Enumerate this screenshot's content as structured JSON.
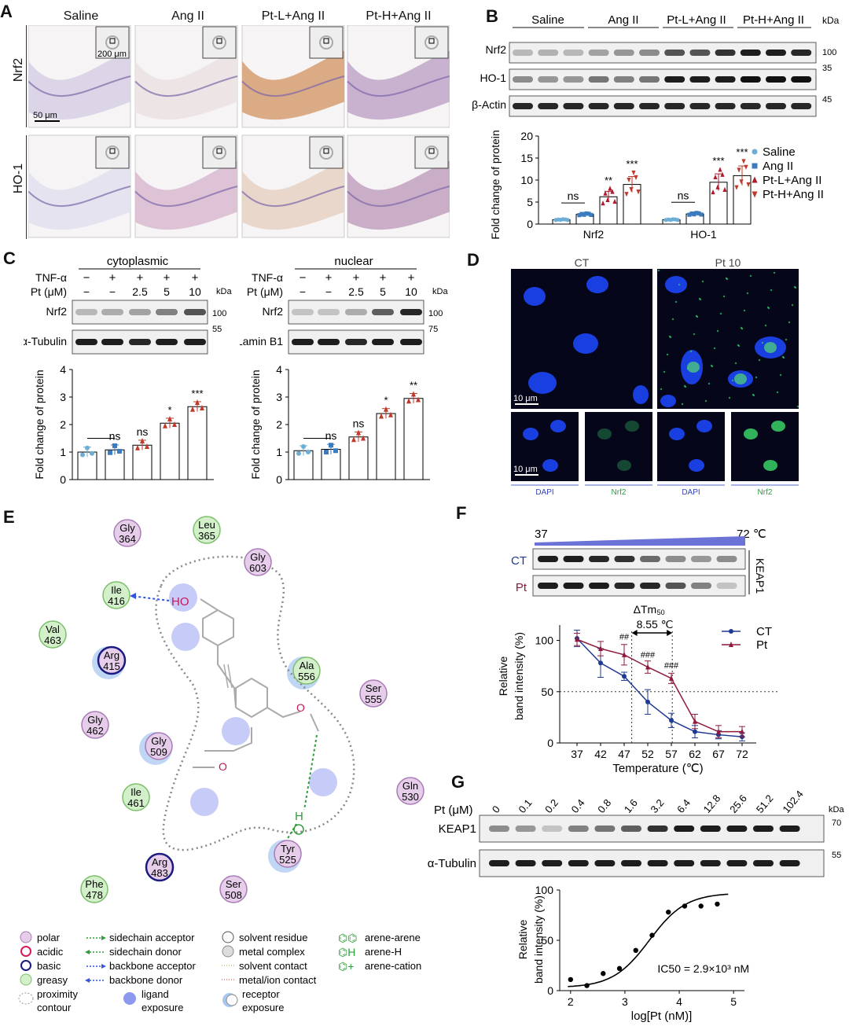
{
  "panel_letters": [
    "A",
    "B",
    "C",
    "D",
    "E",
    "F",
    "G"
  ],
  "panelA": {
    "groups": [
      "Saline",
      "Ang II",
      "Pt-L+Ang II",
      "Pt-H+Ang II"
    ],
    "rows": [
      "Nrf2",
      "HO-1"
    ],
    "scale_big": "200 μm",
    "scale_small": "50 μm",
    "tissue_colors": [
      [
        "#d9d3e6",
        "#ece4e4",
        "#d9a77e",
        "#c6aecd"
      ],
      [
        "#e4e2ee",
        "#dcbfd4",
        "#e7d5c7",
        "#c7aac4"
      ]
    ]
  },
  "panelB": {
    "groups": [
      "Saline",
      "Ang II",
      "Pt-L+Ang II",
      "Pt-H+Ang II"
    ],
    "kda_header": "kDa",
    "rows": [
      {
        "label": "Nrf2",
        "kda": "100"
      },
      {
        "label": "HO-1",
        "kda": "35"
      },
      {
        "label": "β-Actin",
        "kda": "45"
      }
    ],
    "chart_data": {
      "type": "bar",
      "ylabel": "Fold change of protein",
      "ylim": [
        0,
        20
      ],
      "yticks": [
        "0",
        "5",
        "10",
        "15",
        "20"
      ],
      "categories": [
        "Nrf2",
        "HO-1"
      ],
      "series": [
        {
          "name": "Saline",
          "values": [
            1.0,
            1.0
          ],
          "color": "#6baed6",
          "marker": "circle"
        },
        {
          "name": "Ang II",
          "values": [
            2.2,
            2.3
          ],
          "color": "#3b7bbf",
          "marker": "square"
        },
        {
          "name": "Pt-L+Ang II",
          "values": [
            6.2,
            9.5
          ],
          "color": "#b2182b",
          "marker": "triangle-up"
        },
        {
          "name": "Pt-H+Ang II",
          "values": [
            9.0,
            11.0
          ],
          "color": "#c0392b",
          "marker": "triangle-down"
        }
      ],
      "annotations": [
        {
          "text": "ns",
          "group": 0,
          "between": [
            0,
            1
          ]
        },
        {
          "text": "**",
          "group": 0,
          "series": 2
        },
        {
          "text": "***",
          "group": 0,
          "series": 3
        },
        {
          "text": "ns",
          "group": 1,
          "between": [
            0,
            1
          ]
        },
        {
          "text": "***",
          "group": 1,
          "series": 2
        },
        {
          "text": "***",
          "group": 1,
          "series": 3
        }
      ]
    }
  },
  "panelC": {
    "left": {
      "title": "cytoplasmic",
      "row1_label": "TNF-α",
      "row1": [
        "−",
        "+",
        "+",
        "+",
        "+"
      ],
      "row2_label": "Pt (μM)",
      "row2": [
        "−",
        "−",
        "2.5",
        "5",
        "10"
      ],
      "kda": "kDa",
      "bands": [
        {
          "label": "Nrf2",
          "kda": "100"
        },
        {
          "label": "α-Tubulin",
          "kda": "55"
        }
      ],
      "chart_data": {
        "type": "bar",
        "ylabel": "Fold change of protein",
        "ylim": [
          0,
          4
        ],
        "yticks": [
          "0",
          "1",
          "2",
          "3",
          "4"
        ],
        "values": [
          1.0,
          1.08,
          1.25,
          2.05,
          2.65
        ],
        "colors": [
          "#6baed6",
          "#3b7bbf",
          "#c0392b",
          "#c0392b",
          "#c0392b"
        ],
        "annotations": [
          {
            "text": "ns",
            "bar": 1
          },
          {
            "text": "ns",
            "bar": 2
          },
          {
            "text": "*",
            "bar": 3
          },
          {
            "text": "***",
            "bar": 4
          }
        ]
      }
    },
    "right": {
      "title": "nuclear",
      "row1_label": "TNF-α",
      "row1": [
        "−",
        "+",
        "+",
        "+",
        "+"
      ],
      "row2_label": "Pt (μM)",
      "row2": [
        "−",
        "−",
        "2.5",
        "5",
        "10"
      ],
      "kda": "kDa",
      "bands": [
        {
          "label": "Nrf2",
          "kda": "100"
        },
        {
          "label": "Lamin B1",
          "kda": "75"
        }
      ],
      "chart_data": {
        "type": "bar",
        "ylabel": "Fold change of protein",
        "ylim": [
          0,
          4
        ],
        "yticks": [
          "0",
          "1",
          "2",
          "3",
          "4"
        ],
        "values": [
          1.05,
          1.1,
          1.55,
          2.4,
          2.95
        ],
        "colors": [
          "#6baed6",
          "#3b7bbf",
          "#c0392b",
          "#c0392b",
          "#c0392b"
        ],
        "annotations": [
          {
            "text": "ns",
            "bar": 1
          },
          {
            "text": "ns",
            "bar": 2
          },
          {
            "text": "*",
            "bar": 3
          },
          {
            "text": "**",
            "bar": 4
          }
        ]
      }
    }
  },
  "panelD": {
    "cols": [
      "CT",
      "Pt 10"
    ],
    "scale": "10 μm",
    "bottom_labels": [
      "DAPI",
      "Nrf2",
      "DAPI",
      "Nrf2"
    ]
  },
  "panelE": {
    "residues": [
      {
        "name": "Gly",
        "num": "364",
        "type": "polar"
      },
      {
        "name": "Leu",
        "num": "365",
        "type": "greasy"
      },
      {
        "name": "Gly",
        "num": "603",
        "type": "polar"
      },
      {
        "name": "Ile",
        "num": "416",
        "type": "greasy"
      },
      {
        "name": "Val",
        "num": "463",
        "type": "greasy"
      },
      {
        "name": "Arg",
        "num": "415",
        "type": "basic"
      },
      {
        "name": "Ala",
        "num": "556",
        "type": "greasy"
      },
      {
        "name": "Ser",
        "num": "555",
        "type": "polar"
      },
      {
        "name": "Gly",
        "num": "462",
        "type": "polar"
      },
      {
        "name": "Gly",
        "num": "509",
        "type": "polar"
      },
      {
        "name": "Ile",
        "num": "461",
        "type": "greasy"
      },
      {
        "name": "Gln",
        "num": "530",
        "type": "polar"
      },
      {
        "name": "Tyr",
        "num": "525",
        "type": "polar"
      },
      {
        "name": "Arg",
        "num": "483",
        "type": "basic"
      },
      {
        "name": "Phe",
        "num": "478",
        "type": "greasy"
      },
      {
        "name": "Ser",
        "num": "508",
        "type": "polar"
      }
    ],
    "ligand_labels": {
      "ho": "HO",
      "h": "H"
    },
    "legend": [
      {
        "label": "polar",
        "sym": "polar"
      },
      {
        "label": "acidic",
        "sym": "acidic"
      },
      {
        "label": "basic",
        "sym": "basic"
      },
      {
        "label": "greasy",
        "sym": "greasy"
      },
      {
        "label": "proximity contour",
        "sym": "contour"
      },
      {
        "label": "sidechain acceptor",
        "sym": "arrow-green-r"
      },
      {
        "label": "sidechain donor",
        "sym": "arrow-green-l"
      },
      {
        "label": "backbone acceptor",
        "sym": "arrow-blue-r"
      },
      {
        "label": "backbone donor",
        "sym": "arrow-blue-l"
      },
      {
        "label": "ligand exposure",
        "sym": "ligexp"
      },
      {
        "label": "solvent residue",
        "sym": "solvent"
      },
      {
        "label": "metal complex",
        "sym": "metal"
      },
      {
        "label": "solvent contact",
        "sym": "line-olive"
      },
      {
        "label": "metal/ion contact",
        "sym": "line-red"
      },
      {
        "label": "receptor exposure",
        "sym": "recexp"
      },
      {
        "label": "arene-arene",
        "sym": "aa"
      },
      {
        "label": "arene-H",
        "sym": "ah"
      },
      {
        "label": "arene-cation",
        "sym": "ac"
      }
    ]
  },
  "panelF": {
    "temp_start": "37",
    "temp_end": "72 ℃",
    "rows": [
      "CT",
      "Pt"
    ],
    "side_label": "KEAP1",
    "dtm_label": "ΔTm",
    "dtm_sub": "50",
    "dtm_value": "8.55 ℃",
    "chart_data": {
      "type": "line",
      "xlabel": "Temperature (℃)",
      "ylabel": "Relative band intensity (%)",
      "x": [
        37,
        42,
        47,
        52,
        57,
        62,
        67,
        72
      ],
      "ylim": [
        0,
        115
      ],
      "yticks": [
        "0",
        "50",
        "100"
      ],
      "series": [
        {
          "name": "CT",
          "values": [
            102,
            78,
            65,
            40,
            22,
            11,
            8,
            6
          ],
          "errors": [
            8,
            14,
            4,
            12,
            7,
            6,
            4,
            4
          ],
          "color": "#1f3a93",
          "marker": "circle"
        },
        {
          "name": "Pt",
          "values": [
            101,
            92,
            86,
            74,
            63,
            21,
            11,
            11
          ],
          "errors": [
            6,
            7,
            10,
            6,
            5,
            7,
            6,
            5
          ],
          "color": "#8e1b3b",
          "marker": "triangle-up"
        }
      ],
      "annotations": [
        "##",
        "###",
        "###"
      ],
      "refline_y": 50,
      "tm_lines": [
        48.6,
        57.2
      ]
    }
  },
  "panelG": {
    "pt_label": "Pt (μM)",
    "concs": [
      "0",
      "0.1",
      "0.2",
      "0.4",
      "0.8",
      "1.6",
      "3.2",
      "6.4",
      "12.8",
      "25.6",
      "51.2",
      "102.4"
    ],
    "kda": "kDa",
    "bands": [
      {
        "label": "KEAP1",
        "kda": "70"
      },
      {
        "label": "α-Tubulin",
        "kda": "55"
      }
    ],
    "band_intensity": [
      0.45,
      0.4,
      0.2,
      0.5,
      0.55,
      0.65,
      0.85,
      0.95,
      0.95,
      0.95,
      0.95,
      0.95
    ],
    "chart_data": {
      "type": "scatter",
      "xlabel": "log[Pt (nM)]",
      "ylabel": "Relative band intensity (%)",
      "xlim": [
        1.8,
        5.2
      ],
      "ylim": [
        0,
        100
      ],
      "xticks": [
        "2",
        "3",
        "4",
        "5"
      ],
      "yticks": [
        "0",
        "50",
        "100"
      ],
      "x": [
        2.0,
        2.3,
        2.6,
        2.9,
        3.2,
        3.5,
        3.8,
        4.1,
        4.4,
        4.7
      ],
      "y": [
        11,
        5,
        17,
        22,
        40,
        55,
        78,
        84,
        84,
        86
      ],
      "fit": "sigmoid",
      "annotation": "IC50 = 2.9×10³ nM"
    }
  }
}
